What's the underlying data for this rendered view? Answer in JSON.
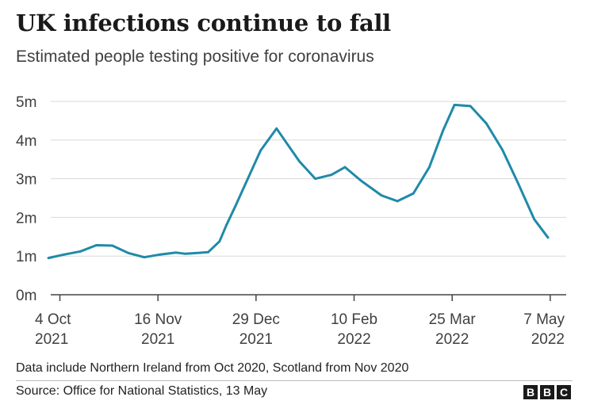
{
  "title": "UK infections continue to fall",
  "subtitle": "Estimated people testing positive for coronavirus",
  "note": "Data include Northern Ireland from Oct 2020, Scotland from Nov 2020",
  "source": "Source: Office for National Statistics, 13 May",
  "logo_letters": [
    "B",
    "B",
    "C"
  ],
  "colors": {
    "line": "#1f8aa8",
    "grid": "#d9d9d9",
    "axis": "#444444",
    "text": "#404040"
  },
  "chart_data": {
    "type": "line",
    "ylim": [
      0,
      5
    ],
    "yticks": [
      {
        "value": 0,
        "label": "0m"
      },
      {
        "value": 1,
        "label": "1m"
      },
      {
        "value": 2,
        "label": "2m"
      },
      {
        "value": 3,
        "label": "3m"
      },
      {
        "value": 4,
        "label": "4m"
      },
      {
        "value": 5,
        "label": "5m"
      }
    ],
    "xlim": [
      "2021-09-30",
      "2022-05-14"
    ],
    "xticks": [
      {
        "date": "2021-10-04",
        "line1": "4 Oct",
        "line2": "2021"
      },
      {
        "date": "2021-11-16",
        "line1": "16 Nov",
        "line2": "2021"
      },
      {
        "date": "2021-12-29",
        "line1": "29 Dec",
        "line2": "2021"
      },
      {
        "date": "2022-02-10",
        "line1": "10 Feb",
        "line2": "2022"
      },
      {
        "date": "2022-03-25",
        "line1": "25 Mar",
        "line2": "2022"
      },
      {
        "date": "2022-05-07",
        "line1": "7 May",
        "line2": "2022"
      }
    ],
    "series": [
      {
        "points": [
          [
            "2021-09-29",
            0.95
          ],
          [
            "2021-10-06",
            1.04
          ],
          [
            "2021-10-13",
            1.12
          ],
          [
            "2021-10-20",
            1.28
          ],
          [
            "2021-10-27",
            1.27
          ],
          [
            "2021-11-03",
            1.08
          ],
          [
            "2021-11-10",
            0.97
          ],
          [
            "2021-11-17",
            1.04
          ],
          [
            "2021-11-24",
            1.09
          ],
          [
            "2021-11-28",
            1.06
          ],
          [
            "2021-12-08",
            1.1
          ],
          [
            "2021-12-13",
            1.38
          ],
          [
            "2021-12-16",
            1.8
          ],
          [
            "2021-12-20",
            2.3
          ],
          [
            "2021-12-31",
            3.73
          ],
          [
            "2022-01-07",
            4.3
          ],
          [
            "2022-01-17",
            3.45
          ],
          [
            "2022-01-24",
            3.0
          ],
          [
            "2022-01-31",
            3.1
          ],
          [
            "2022-02-06",
            3.3
          ],
          [
            "2022-02-13",
            2.95
          ],
          [
            "2022-02-22",
            2.57
          ],
          [
            "2022-03-01",
            2.42
          ],
          [
            "2022-03-08",
            2.62
          ],
          [
            "2022-03-15",
            3.3
          ],
          [
            "2022-03-21",
            4.25
          ],
          [
            "2022-03-26",
            4.91
          ],
          [
            "2022-04-02",
            4.88
          ],
          [
            "2022-04-09",
            4.43
          ],
          [
            "2022-04-16",
            3.75
          ],
          [
            "2022-04-23",
            2.87
          ],
          [
            "2022-04-30",
            1.95
          ],
          [
            "2022-05-06",
            1.48
          ]
        ]
      }
    ]
  }
}
